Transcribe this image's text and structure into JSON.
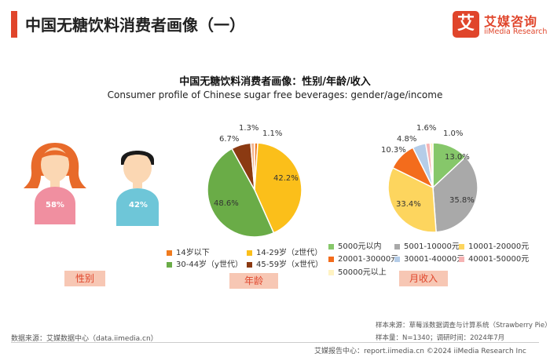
{
  "header": {
    "title": "中国无糖饮料消费者画像（一）",
    "logo_mark": "艾",
    "logo_cn": "艾媒咨询",
    "logo_en": "iiMedia Research"
  },
  "chart_title": "中国无糖饮料消费者画像：性别/年龄/收入",
  "chart_subtitle": "Consumer profile of Chinese sugar free beverages: gender/age/income",
  "chart_data": [
    {
      "type": "pictogram",
      "category_label": "性别",
      "values": [
        {
          "name": "female",
          "value": 58,
          "label": "58%",
          "color": "#f08fa0"
        },
        {
          "name": "male",
          "value": 42,
          "label": "42%",
          "color": "#6ec6d8"
        }
      ]
    },
    {
      "type": "pie",
      "category_label": "年龄",
      "slices": [
        {
          "name": "14岁以下",
          "value": 1.1,
          "label": "1.1%",
          "color": "#f07b1e"
        },
        {
          "name": "14-29岁（z世代）",
          "value": 42.2,
          "label": "42.2%",
          "color": "#fbbf1a"
        },
        {
          "name": "30-44岁（y世代）",
          "value": 48.6,
          "label": "48.6%",
          "color": "#6aac47"
        },
        {
          "name": "45-59岁（x世代）",
          "value": 6.7,
          "label": "6.7%",
          "color": "#8b3a12"
        },
        {
          "name": "",
          "value": 1.3,
          "label": "1.3%",
          "color": "#f2b48f"
        }
      ]
    },
    {
      "type": "pie",
      "category_label": "月收入",
      "slices": [
        {
          "name": "5000元以内",
          "value": 13.0,
          "label": "13.0%",
          "color": "#86c76a"
        },
        {
          "name": "5001-10000元",
          "value": 35.8,
          "label": "35.8%",
          "color": "#a9a9a9"
        },
        {
          "name": "10001-20000元",
          "value": 33.4,
          "label": "33.4%",
          "color": "#fdd55e"
        },
        {
          "name": "20001-30000元",
          "value": 10.3,
          "label": "10.3%",
          "color": "#f36c1c"
        },
        {
          "name": "30001-40000元",
          "value": 4.8,
          "label": "4.8%",
          "color": "#b5cde8"
        },
        {
          "name": "40001-50000元",
          "value": 1.6,
          "label": "1.6%",
          "color": "#f6b3b3"
        },
        {
          "name": "50000元以上",
          "value": 1.0,
          "label": "1.0%",
          "color": "#fff3c2"
        }
      ]
    }
  ],
  "sources": {
    "left": "数据来源：艾媒数据中心（data.iimedia.cn）",
    "right1": "样本来源：草莓派数据调查与计算系统（Strawberry Pie）",
    "right2": "样本量：N=1340；调研时间：2024年7月"
  },
  "footer": "艾媒报告中心：report.iimedia.cn     ©2024  iiMedia Research  Inc"
}
